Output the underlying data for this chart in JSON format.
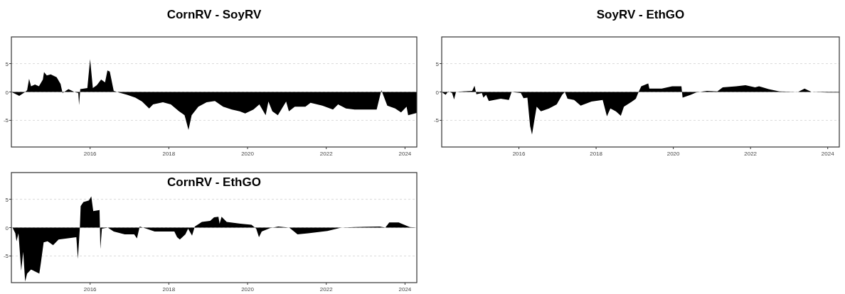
{
  "chart_data": [
    {
      "type": "area",
      "title": "CornRV - SoyRV",
      "xlim": [
        2014,
        2024.3
      ],
      "xticks": [
        2016,
        2018,
        2020,
        2022,
        2024
      ],
      "ylim": [
        -9.7,
        9.7
      ],
      "yticks": [
        -5,
        0,
        5
      ],
      "grid": "y",
      "series": [
        {
          "color": "#000000",
          "x": [
            2014,
            2014.2,
            2014.35,
            2014.4,
            2014.45,
            2014.5,
            2014.6,
            2014.7,
            2014.8,
            2014.83,
            2014.9,
            2015,
            2015.15,
            2015.25,
            2015.3,
            2015.45,
            2015.6,
            2015.7,
            2015.72,
            2015.75,
            2015.93,
            2016,
            2016.07,
            2016.17,
            2016.28,
            2016.38,
            2016.44,
            2016.5,
            2016.6,
            2016.73,
            2016.94,
            2017.15,
            2017.32,
            2017.5,
            2017.6,
            2017.85,
            2018.05,
            2018.26,
            2018.4,
            2018.5,
            2018.58,
            2018.75,
            2018.96,
            2019.17,
            2019.38,
            2019.6,
            2019.8,
            2019.94,
            2020.15,
            2020.3,
            2020.46,
            2020.53,
            2020.63,
            2020.77,
            2020.98,
            2021.05,
            2021.2,
            2021.47,
            2021.6,
            2021.9,
            2022.17,
            2022.3,
            2022.5,
            2022.72,
            2023.28,
            2023.4,
            2023.55,
            2023.75,
            2023.9,
            2024.04,
            2024.08,
            2024.3
          ],
          "values": [
            0,
            -0.7,
            0,
            0.3,
            2.3,
            1,
            1.3,
            1,
            2.2,
            3.5,
            2.9,
            3.1,
            2.6,
            1.4,
            -0.2,
            0.5,
            0,
            -0.2,
            -2.3,
            0.5,
            0.7,
            5.8,
            0.7,
            1.2,
            2.2,
            1.7,
            3.8,
            3.6,
            0.2,
            -0.1,
            -0.5,
            -1,
            -1.7,
            -2.9,
            -2.2,
            -1.8,
            -2.2,
            -3.4,
            -4.1,
            -6.7,
            -4.1,
            -2.6,
            -1.8,
            -1.6,
            -2.6,
            -3.1,
            -3.4,
            -3.8,
            -3.1,
            -2.2,
            -4.1,
            -1.7,
            -3.4,
            -4.1,
            -1.7,
            -3.4,
            -2.6,
            -2.6,
            -1.9,
            -2.4,
            -3.1,
            -2.2,
            -2.9,
            -3.1,
            -3.1,
            0.3,
            -2.4,
            -2.9,
            -3.6,
            -2.6,
            -4.1,
            -3.7
          ]
        }
      ]
    },
    {
      "type": "area",
      "title": "SoyRV - EthGO",
      "xlim": [
        2014,
        2024.3
      ],
      "xticks": [
        2016,
        2018,
        2020,
        2022,
        2024
      ],
      "ylim": [
        -9.7,
        9.7
      ],
      "yticks": [
        -5,
        0,
        5
      ],
      "grid": "y",
      "series": [
        {
          "color": "#000000",
          "x": [
            2014,
            2014.1,
            2014.17,
            2014.27,
            2014.32,
            2014.37,
            2014.55,
            2014.79,
            2014.85,
            2014.9,
            2015.04,
            2015.08,
            2015.15,
            2015.22,
            2015.36,
            2015.53,
            2015.74,
            2015.81,
            2016.05,
            2016.12,
            2016.22,
            2016.29,
            2016.34,
            2016.4,
            2016.46,
            2016.57,
            2016.78,
            2016.98,
            2017.12,
            2017.19,
            2017.26,
            2017.43,
            2017.6,
            2017.88,
            2018.17,
            2018.28,
            2018.37,
            2018.51,
            2018.64,
            2018.72,
            2018.93,
            2019.03,
            2019.1,
            2019.17,
            2019.35,
            2019.38,
            2019.7,
            2019.97,
            2020.21,
            2020.24,
            2020.45,
            2020.59,
            2020.87,
            2021.14,
            2021.28,
            2021.63,
            2021.87,
            2022.12,
            2022.22,
            2022.47,
            2022.75,
            2023.23,
            2023.4,
            2023.58,
            2024,
            2024.16,
            2024.3
          ],
          "values": [
            0,
            -0.5,
            0.1,
            -0.2,
            -1.3,
            0,
            0.1,
            0.2,
            1.1,
            -0.4,
            -0.2,
            -1,
            -0.5,
            -1.6,
            -1.4,
            -1.2,
            -1.4,
            0,
            -0.2,
            -1.1,
            -1,
            -6,
            -7.5,
            -5,
            -2.6,
            -3.4,
            -2.9,
            -2.2,
            -0.5,
            0,
            -1.2,
            -1.4,
            -2.4,
            -1.7,
            -1.4,
            -4.3,
            -2.9,
            -3.4,
            -4.2,
            -2.6,
            -1.7,
            -1.2,
            0,
            1,
            1.5,
            0.6,
            0.6,
            1,
            1,
            -1,
            -0.5,
            -0.1,
            0.2,
            0.1,
            0.8,
            1,
            1.2,
            0.8,
            1,
            0.5,
            0.1,
            0,
            0.6,
            0,
            -0.1,
            -0.1,
            -0.1
          ]
        }
      ]
    },
    {
      "type": "area",
      "title": "CornRV - EthGO",
      "xlim": [
        2014,
        2024.3
      ],
      "xticks": [
        2016,
        2018,
        2020,
        2022,
        2024
      ],
      "ylim": [
        -9.7,
        9.7
      ],
      "yticks": [
        -5,
        0,
        5
      ],
      "grid": "y",
      "series": [
        {
          "color": "#000000",
          "x": [
            2014.03,
            2014.1,
            2014.13,
            2014.18,
            2014.25,
            2014.3,
            2014.35,
            2014.4,
            2014.5,
            2014.71,
            2014.75,
            2014.82,
            2014.92,
            2015.06,
            2015.2,
            2015.41,
            2015.65,
            2015.69,
            2015.74,
            2015.76,
            2015.83,
            2015.97,
            2016.03,
            2016.08,
            2016.24,
            2016.25,
            2016.26,
            2016.3,
            2016.45,
            2016.6,
            2016.88,
            2017.12,
            2017.19,
            2017.26,
            2017.43,
            2017.64,
            2018.14,
            2018.21,
            2018.28,
            2018.42,
            2018.49,
            2018.59,
            2018.66,
            2018.84,
            2019.05,
            2019.15,
            2019.26,
            2019.29,
            2019.34,
            2019.47,
            2019.82,
            2020.1,
            2020.22,
            2020.29,
            2020.36,
            2020.57,
            2020.78,
            2021.06,
            2021.27,
            2021.54,
            2022.03,
            2022.38,
            2022.73,
            2023.36,
            2023.5,
            2023.6,
            2023.84,
            2024.12,
            2024.3
          ],
          "values": [
            0,
            -1,
            -2.4,
            -1,
            -7.6,
            -4.3,
            -9.5,
            -8.1,
            -7.4,
            -8.1,
            -6.2,
            -2.6,
            -2.4,
            -3.1,
            -2.1,
            -1.9,
            -1.7,
            -5.5,
            0,
            3.8,
            4.5,
            4.8,
            5.5,
            2.9,
            3.1,
            0,
            -3.8,
            -0.2,
            0,
            -0.7,
            -1.2,
            -1.2,
            -1.9,
            0.2,
            -0.2,
            -0.7,
            -0.7,
            -1.7,
            -2.1,
            -1.2,
            -0.2,
            -1.4,
            0.2,
            1,
            1.2,
            1.8,
            1.9,
            0.7,
            1.9,
            1,
            0.7,
            0.5,
            -0.2,
            -1.7,
            -0.7,
            -0.1,
            0.2,
            0,
            -1.2,
            -1,
            -0.6,
            0,
            0.1,
            0.2,
            0,
            0.9,
            0.9,
            0.1,
            0
          ]
        }
      ]
    }
  ]
}
